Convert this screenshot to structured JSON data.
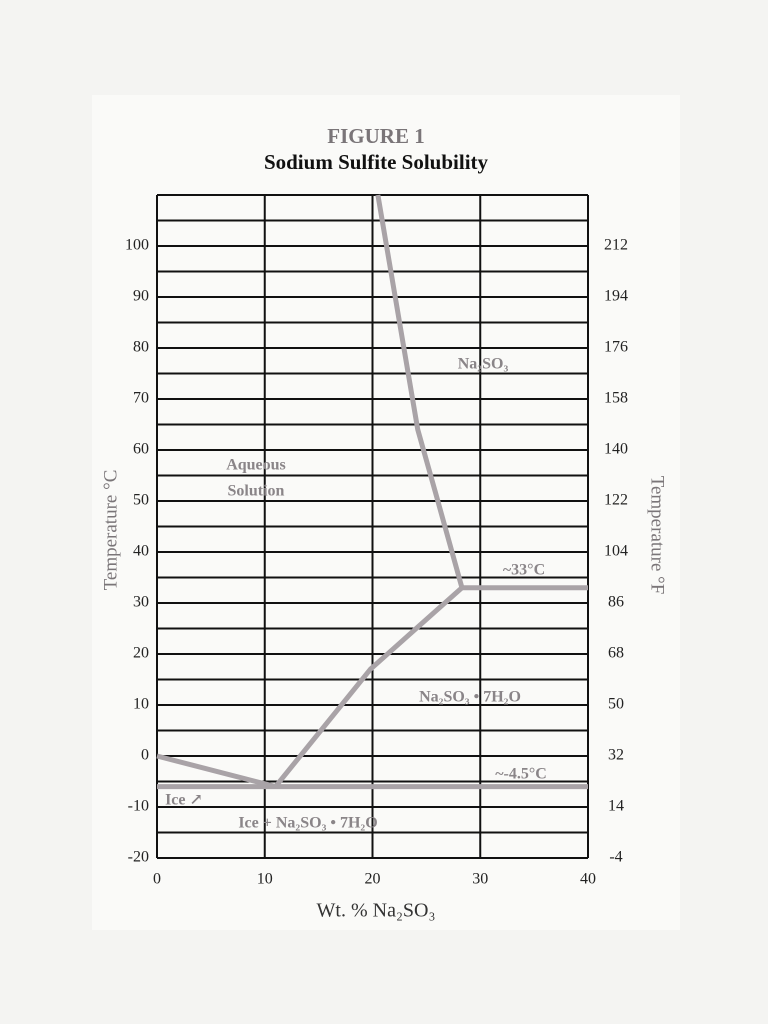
{
  "chart_data": {
    "type": "line",
    "title": "FIGURE 1",
    "subtitle": "Sodium Sulfite Solubility",
    "x_label": "Wt. % Na₂SO₃",
    "y_label": "Temperature °C",
    "y2_label": "Temperature °F",
    "xlim": [
      0,
      40
    ],
    "xticks": [
      0,
      10,
      20,
      30,
      40
    ],
    "ylim": [
      -20,
      110
    ],
    "yticks": [
      -20,
      -10,
      0,
      10,
      20,
      30,
      40,
      50,
      60,
      70,
      80,
      90,
      100
    ],
    "y_minor_ticks": [
      -15,
      -5,
      5,
      15,
      25,
      35,
      45,
      55,
      65,
      75,
      85,
      95,
      105,
      110
    ],
    "y2lim": [
      -4,
      230
    ],
    "y2ticks": [
      -4,
      14,
      32,
      50,
      68,
      86,
      104,
      122,
      140,
      158,
      176,
      194,
      212
    ],
    "grid": true,
    "series": [
      {
        "color": "#a9a3a7",
        "x": [
          20.5,
          24.2,
          25.8,
          28.3
        ],
        "values": [
          110,
          64,
          52,
          33
        ]
      },
      {
        "color": "#a9a3a7",
        "x": [
          28.3,
          40
        ],
        "values": [
          33,
          33
        ]
      },
      {
        "color": "#a9a3a7",
        "x": [
          28.3,
          19.8,
          11
        ],
        "values": [
          33,
          17,
          -6
        ]
      },
      {
        "color": "#a9a3a7",
        "x": [
          0,
          11
        ],
        "values": [
          0,
          -6
        ]
      },
      {
        "color": "#a9a3a7",
        "x": [
          0,
          40
        ],
        "values": [
          -6,
          -6
        ]
      }
    ],
    "annotations": [
      "Na₂SO₃",
      "Aqueous",
      "Solution",
      "~33°C",
      "Na₂SO₃ • 7H₂O",
      "~-4.5°C",
      "Ice ↗",
      "Ice + Na₂SO₃ • 7H₂O"
    ]
  }
}
